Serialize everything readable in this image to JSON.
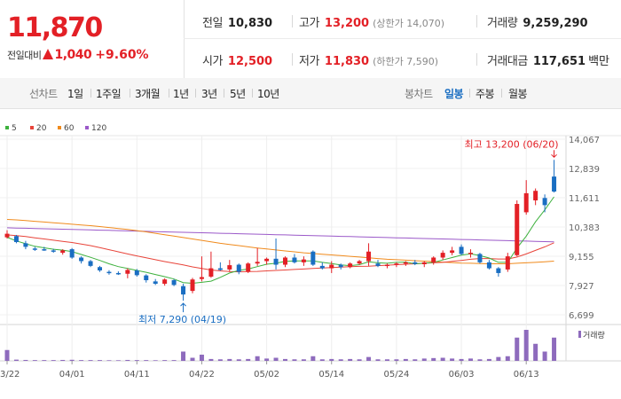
{
  "quote": {
    "price": "11,870",
    "change_label": "전일대비",
    "change_amount": "1,040",
    "change_percent": "+9.60%",
    "colors": {
      "up": "#e32026",
      "down": "#1a6ec2"
    }
  },
  "stats": {
    "prev_close": {
      "label": "전일",
      "value": "10,830"
    },
    "open": {
      "label": "시가",
      "value": "12,500"
    },
    "high": {
      "label": "고가",
      "value": "13,200",
      "note": "(상한가 14,070)"
    },
    "low": {
      "label": "저가",
      "value": "11,830",
      "note": "(하한가 7,590)"
    },
    "volume": {
      "label": "거래량",
      "value": "9,259,290"
    },
    "turnover": {
      "label": "거래대금",
      "value": "117,651",
      "unit": "백만"
    }
  },
  "tabs": {
    "line_chart_label": "선차트",
    "periods": [
      "1일",
      "1주일",
      "3개월",
      "1년",
      "3년",
      "5년",
      "10년"
    ],
    "candle_label": "봉차트",
    "candle_types": [
      "일봉",
      "주봉",
      "월봉"
    ],
    "candle_selected": "일봉"
  },
  "chart_data": {
    "type": "candlestick",
    "legend": [
      {
        "label": "5",
        "color": "#3db13d"
      },
      {
        "label": "20",
        "color": "#e8443a"
      },
      {
        "label": "60",
        "color": "#f08a1c"
      },
      {
        "label": "120",
        "color": "#9b59c9"
      }
    ],
    "y_ticks": [
      "14,067",
      "12,839",
      "11,611",
      "10,383",
      "9,155",
      "7,927",
      "6,699"
    ],
    "ylim": [
      6699,
      14067
    ],
    "x_ticks": [
      "03/22",
      "04/01",
      "04/11",
      "04/22",
      "05/02",
      "05/14",
      "05/24",
      "06/03",
      "06/13"
    ],
    "x_tick_index": [
      0,
      7,
      14,
      21,
      28,
      35,
      42,
      49,
      56
    ],
    "high_annotation": "최고 13,200 (06/20)",
    "low_annotation": "최저 7,290 (04/19)",
    "volume_label": "거래량",
    "candles": [
      {
        "o": 9950,
        "h": 10250,
        "l": 9900,
        "c": 10100
      },
      {
        "o": 10000,
        "h": 10050,
        "l": 9700,
        "c": 9750
      },
      {
        "o": 9700,
        "h": 9800,
        "l": 9450,
        "c": 9550
      },
      {
        "o": 9480,
        "h": 9550,
        "l": 9380,
        "c": 9450
      },
      {
        "o": 9450,
        "h": 9550,
        "l": 9380,
        "c": 9420
      },
      {
        "o": 9400,
        "h": 9470,
        "l": 9300,
        "c": 9350
      },
      {
        "o": 9300,
        "h": 9450,
        "l": 9220,
        "c": 9400
      },
      {
        "o": 9450,
        "h": 9500,
        "l": 9050,
        "c": 9100
      },
      {
        "o": 9100,
        "h": 9150,
        "l": 8850,
        "c": 8950
      },
      {
        "o": 8950,
        "h": 9000,
        "l": 8700,
        "c": 8750
      },
      {
        "o": 8700,
        "h": 8750,
        "l": 8500,
        "c": 8560
      },
      {
        "o": 8500,
        "h": 8570,
        "l": 8380,
        "c": 8450
      },
      {
        "o": 8450,
        "h": 8520,
        "l": 8370,
        "c": 8420
      },
      {
        "o": 8420,
        "h": 8650,
        "l": 8230,
        "c": 8580
      },
      {
        "o": 8560,
        "h": 8620,
        "l": 8300,
        "c": 8360
      },
      {
        "o": 8350,
        "h": 8400,
        "l": 8050,
        "c": 8150
      },
      {
        "o": 8100,
        "h": 8200,
        "l": 7950,
        "c": 8000
      },
      {
        "o": 8000,
        "h": 8230,
        "l": 7920,
        "c": 8180
      },
      {
        "o": 8150,
        "h": 8200,
        "l": 7900,
        "c": 7950
      },
      {
        "o": 7900,
        "h": 8000,
        "l": 7290,
        "c": 7550
      },
      {
        "o": 7700,
        "h": 8250,
        "l": 7600,
        "c": 8180
      },
      {
        "o": 8200,
        "h": 9150,
        "l": 8100,
        "c": 8280
      },
      {
        "o": 8300,
        "h": 9350,
        "l": 8250,
        "c": 8650
      },
      {
        "o": 8650,
        "h": 8900,
        "l": 8550,
        "c": 8580
      },
      {
        "o": 8600,
        "h": 9000,
        "l": 8500,
        "c": 8780
      },
      {
        "o": 8800,
        "h": 8850,
        "l": 8400,
        "c": 8500
      },
      {
        "o": 8500,
        "h": 8900,
        "l": 8450,
        "c": 8850
      },
      {
        "o": 8850,
        "h": 9500,
        "l": 8750,
        "c": 8920
      },
      {
        "o": 8950,
        "h": 9100,
        "l": 8800,
        "c": 9050
      },
      {
        "o": 9050,
        "h": 9900,
        "l": 8600,
        "c": 8800
      },
      {
        "o": 8800,
        "h": 9150,
        "l": 8700,
        "c": 9100
      },
      {
        "o": 9100,
        "h": 9250,
        "l": 8850,
        "c": 8900
      },
      {
        "o": 8900,
        "h": 9150,
        "l": 8750,
        "c": 9020
      },
      {
        "o": 9350,
        "h": 9400,
        "l": 8750,
        "c": 8800
      },
      {
        "o": 8750,
        "h": 8900,
        "l": 8600,
        "c": 8650
      },
      {
        "o": 8650,
        "h": 8950,
        "l": 8450,
        "c": 8800
      },
      {
        "o": 8800,
        "h": 8850,
        "l": 8600,
        "c": 8700
      },
      {
        "o": 8700,
        "h": 8900,
        "l": 8650,
        "c": 8850
      },
      {
        "o": 8850,
        "h": 9000,
        "l": 8800,
        "c": 8950
      },
      {
        "o": 8950,
        "h": 9700,
        "l": 8750,
        "c": 9350
      },
      {
        "o": 8850,
        "h": 9000,
        "l": 8700,
        "c": 8750
      },
      {
        "o": 8750,
        "h": 8850,
        "l": 8650,
        "c": 8800
      },
      {
        "o": 8800,
        "h": 8900,
        "l": 8700,
        "c": 8850
      },
      {
        "o": 8850,
        "h": 8950,
        "l": 8750,
        "c": 8900
      },
      {
        "o": 8900,
        "h": 9000,
        "l": 8780,
        "c": 8830
      },
      {
        "o": 8820,
        "h": 8950,
        "l": 8700,
        "c": 8900
      },
      {
        "o": 8900,
        "h": 9150,
        "l": 8800,
        "c": 9100
      },
      {
        "o": 9100,
        "h": 9400,
        "l": 9000,
        "c": 9300
      },
      {
        "o": 9300,
        "h": 9550,
        "l": 9200,
        "c": 9400
      },
      {
        "o": 9550,
        "h": 9650,
        "l": 9200,
        "c": 9250
      },
      {
        "o": 9250,
        "h": 9450,
        "l": 9100,
        "c": 9300
      },
      {
        "o": 9250,
        "h": 9300,
        "l": 8850,
        "c": 8900
      },
      {
        "o": 8900,
        "h": 9000,
        "l": 8600,
        "c": 8650
      },
      {
        "o": 8650,
        "h": 8700,
        "l": 8300,
        "c": 8450
      },
      {
        "o": 8600,
        "h": 9300,
        "l": 8500,
        "c": 9150
      },
      {
        "o": 9200,
        "h": 11500,
        "l": 9150,
        "c": 11350
      },
      {
        "o": 11000,
        "h": 12350,
        "l": 10900,
        "c": 11800
      },
      {
        "o": 11500,
        "h": 12000,
        "l": 11300,
        "c": 11900
      },
      {
        "o": 11600,
        "h": 11750,
        "l": 11000,
        "c": 11300
      },
      {
        "o": 12500,
        "h": 13200,
        "l": 11830,
        "c": 11870
      }
    ],
    "volume": [
      70,
      8,
      6,
      5,
      5,
      5,
      6,
      7,
      5,
      5,
      5,
      4,
      4,
      6,
      5,
      5,
      4,
      5,
      5,
      60,
      20,
      40,
      12,
      10,
      12,
      10,
      12,
      30,
      15,
      20,
      12,
      10,
      10,
      30,
      10,
      12,
      10,
      12,
      10,
      25,
      10,
      10,
      10,
      12,
      10,
      15,
      18,
      20,
      15,
      12,
      15,
      10,
      12,
      25,
      30,
      150,
      200,
      110,
      60,
      150
    ],
    "ma5": [
      9950,
      9800,
      9680,
      9570,
      9510,
      9450,
      9410,
      9350,
      9230,
      9110,
      8980,
      8840,
      8720,
      8640,
      8560,
      8480,
      8390,
      8300,
      8200,
      8050,
      8020,
      8060,
      8110,
      8270,
      8450,
      8560,
      8620,
      8720,
      8820,
      8860,
      8940,
      8960,
      8960,
      8960,
      8900,
      8850,
      8790,
      8760,
      8800,
      8920,
      8880,
      8860,
      8900,
      8910,
      8840,
      8860,
      8900,
      9000,
      9100,
      9200,
      9260,
      9180,
      9080,
      8900,
      8900,
      9500,
      10000,
      10600,
      11100,
      11650
    ],
    "ma20": [
      10050,
      10020,
      9980,
      9930,
      9880,
      9830,
      9780,
      9730,
      9670,
      9600,
      9520,
      9430,
      9340,
      9250,
      9170,
      9090,
      9010,
      8930,
      8860,
      8790,
      8710,
      8640,
      8580,
      8540,
      8510,
      8500,
      8510,
      8520,
      8540,
      8560,
      8580,
      8600,
      8620,
      8640,
      8660,
      8680,
      8700,
      8720,
      8730,
      8740,
      8760,
      8780,
      8800,
      8820,
      8840,
      8860,
      8880,
      8900,
      8940,
      8980,
      9030,
      9060,
      9060,
      9040,
      9040,
      9120,
      9250,
      9400,
      9550,
      9720
    ],
    "ma60": [
      10700,
      10680,
      10650,
      10620,
      10590,
      10560,
      10530,
      10500,
      10470,
      10440,
      10400,
      10360,
      10320,
      10280,
      10230,
      10180,
      10120,
      10060,
      10000,
      9940,
      9880,
      9820,
      9760,
      9700,
      9650,
      9600,
      9550,
      9500,
      9460,
      9420,
      9380,
      9340,
      9300,
      9270,
      9240,
      9210,
      9180,
      9150,
      9120,
      9090,
      9060,
      9030,
      9010,
      8990,
      8970,
      8950,
      8930,
      8910,
      8890,
      8870,
      8860,
      8850,
      8840,
      8840,
      8840,
      8860,
      8880,
      8900,
      8920,
      8950
    ],
    "ma120": [
      10350,
      10340,
      10330,
      10320,
      10310,
      10300,
      10290,
      10280,
      10270,
      10260,
      10250,
      10240,
      10230,
      10220,
      10210,
      10200,
      10190,
      10180,
      10170,
      10160,
      10150,
      10140,
      10130,
      10120,
      10110,
      10100,
      10090,
      10080,
      10070,
      10060,
      10050,
      10040,
      10030,
      10020,
      10010,
      10000,
      9990,
      9980,
      9970,
      9960,
      9950,
      9940,
      9930,
      9920,
      9910,
      9900,
      9890,
      9880,
      9870,
      9860,
      9850,
      9840,
      9830,
      9820,
      9810,
      9800,
      9790,
      9780,
      9770,
      9760
    ]
  }
}
